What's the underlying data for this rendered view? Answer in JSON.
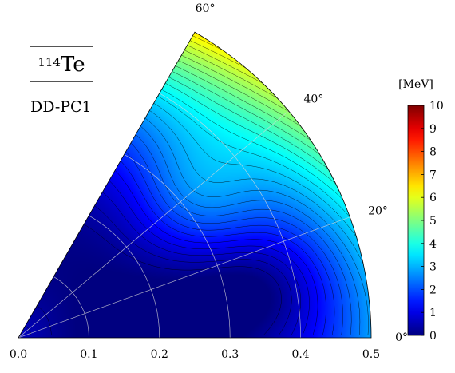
{
  "chart_data": {
    "type": "heatmap",
    "subtype": "polar-sector-contour",
    "nucleus": {
      "mass": "114",
      "element": "Te"
    },
    "label": "DD-PC1",
    "unit_label": "[MeV]",
    "r_ticks": [
      "0.0",
      "0.1",
      "0.2",
      "0.3",
      "0.4",
      "0.5"
    ],
    "angle_ticks": [
      "0°",
      "20°",
      "40°",
      "60°"
    ],
    "colorbar_ticks": [
      "0",
      "1",
      "2",
      "3",
      "4",
      "5",
      "6",
      "7",
      "8",
      "9",
      "10"
    ],
    "colorbar_range": [
      0,
      10
    ],
    "beta_range": [
      0,
      0.5
    ],
    "gamma_range": [
      0,
      60
    ],
    "colormap": "jet",
    "contour_step": 0.25,
    "minimum": {
      "beta": 0.15,
      "gamma": 15,
      "energy": 0
    }
  }
}
